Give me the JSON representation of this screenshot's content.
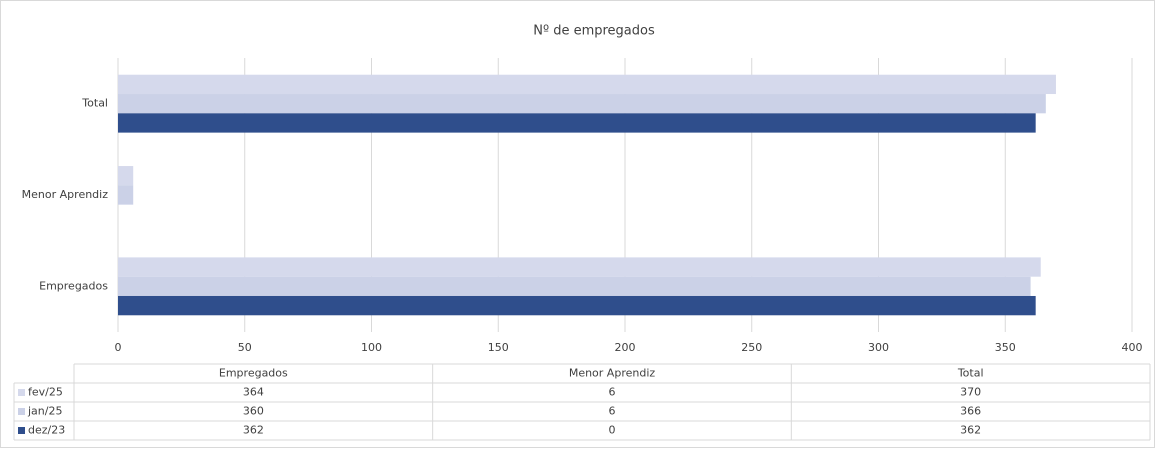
{
  "chart_data": {
    "type": "barh",
    "title": "Nº de empregados",
    "categories": [
      "Empregados",
      "Menor Aprendiz",
      "Total"
    ],
    "series": [
      {
        "name": "fev/25",
        "color": "#d5d9ec",
        "values": [
          364,
          6,
          370
        ]
      },
      {
        "name": "jan/25",
        "color": "#cbd1e7",
        "values": [
          360,
          6,
          366
        ]
      },
      {
        "name": "dez/23",
        "color": "#2f4e8c",
        "values": [
          362,
          0,
          362
        ]
      }
    ],
    "xlim": [
      0,
      400
    ],
    "xticks": [
      0,
      50,
      100,
      150,
      200,
      250,
      300,
      350,
      400
    ],
    "grid": true
  }
}
